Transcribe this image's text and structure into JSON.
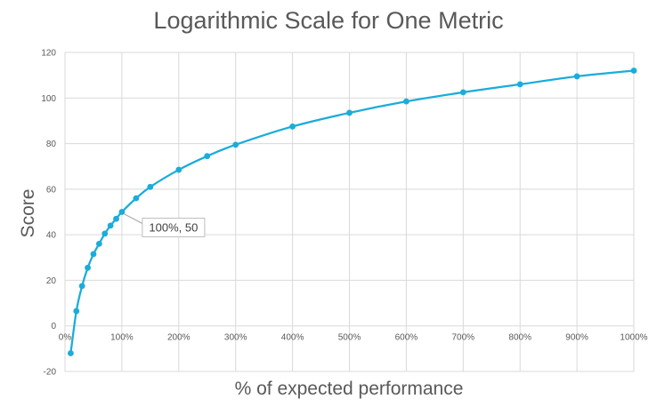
{
  "chart_data": {
    "type": "line",
    "title": "Logarithmic Scale for One Metric",
    "xlabel": "% of expected performance",
    "ylabel": "Score",
    "xlim": [
      0,
      1000
    ],
    "ylim": [
      -20,
      120
    ],
    "x_ticks": [
      0,
      100,
      200,
      300,
      400,
      500,
      600,
      700,
      800,
      900,
      1000
    ],
    "x_tick_labels": [
      "0%",
      "100%",
      "200%",
      "300%",
      "400%",
      "500%",
      "600%",
      "700%",
      "800%",
      "900%",
      "1000%"
    ],
    "y_ticks": [
      -20,
      0,
      20,
      40,
      60,
      80,
      100,
      120
    ],
    "grid": true,
    "series": [
      {
        "color": "#1AACDB",
        "smooth": true,
        "markers": true,
        "x": [
          10,
          20,
          30,
          40,
          50,
          60,
          70,
          80,
          90,
          100,
          125,
          150,
          200,
          250,
          300,
          400,
          500,
          600,
          700,
          800,
          900,
          1000
        ],
        "y": [
          -12,
          6.5,
          17.5,
          25.5,
          31.5,
          36,
          40.5,
          44,
          47,
          50,
          56,
          61,
          68.5,
          74.5,
          79.5,
          87.5,
          93.5,
          98.5,
          102.5,
          106,
          109.5,
          112
        ]
      }
    ],
    "annotation": {
      "text": "100%, 50",
      "x": 100,
      "y": 50
    }
  }
}
